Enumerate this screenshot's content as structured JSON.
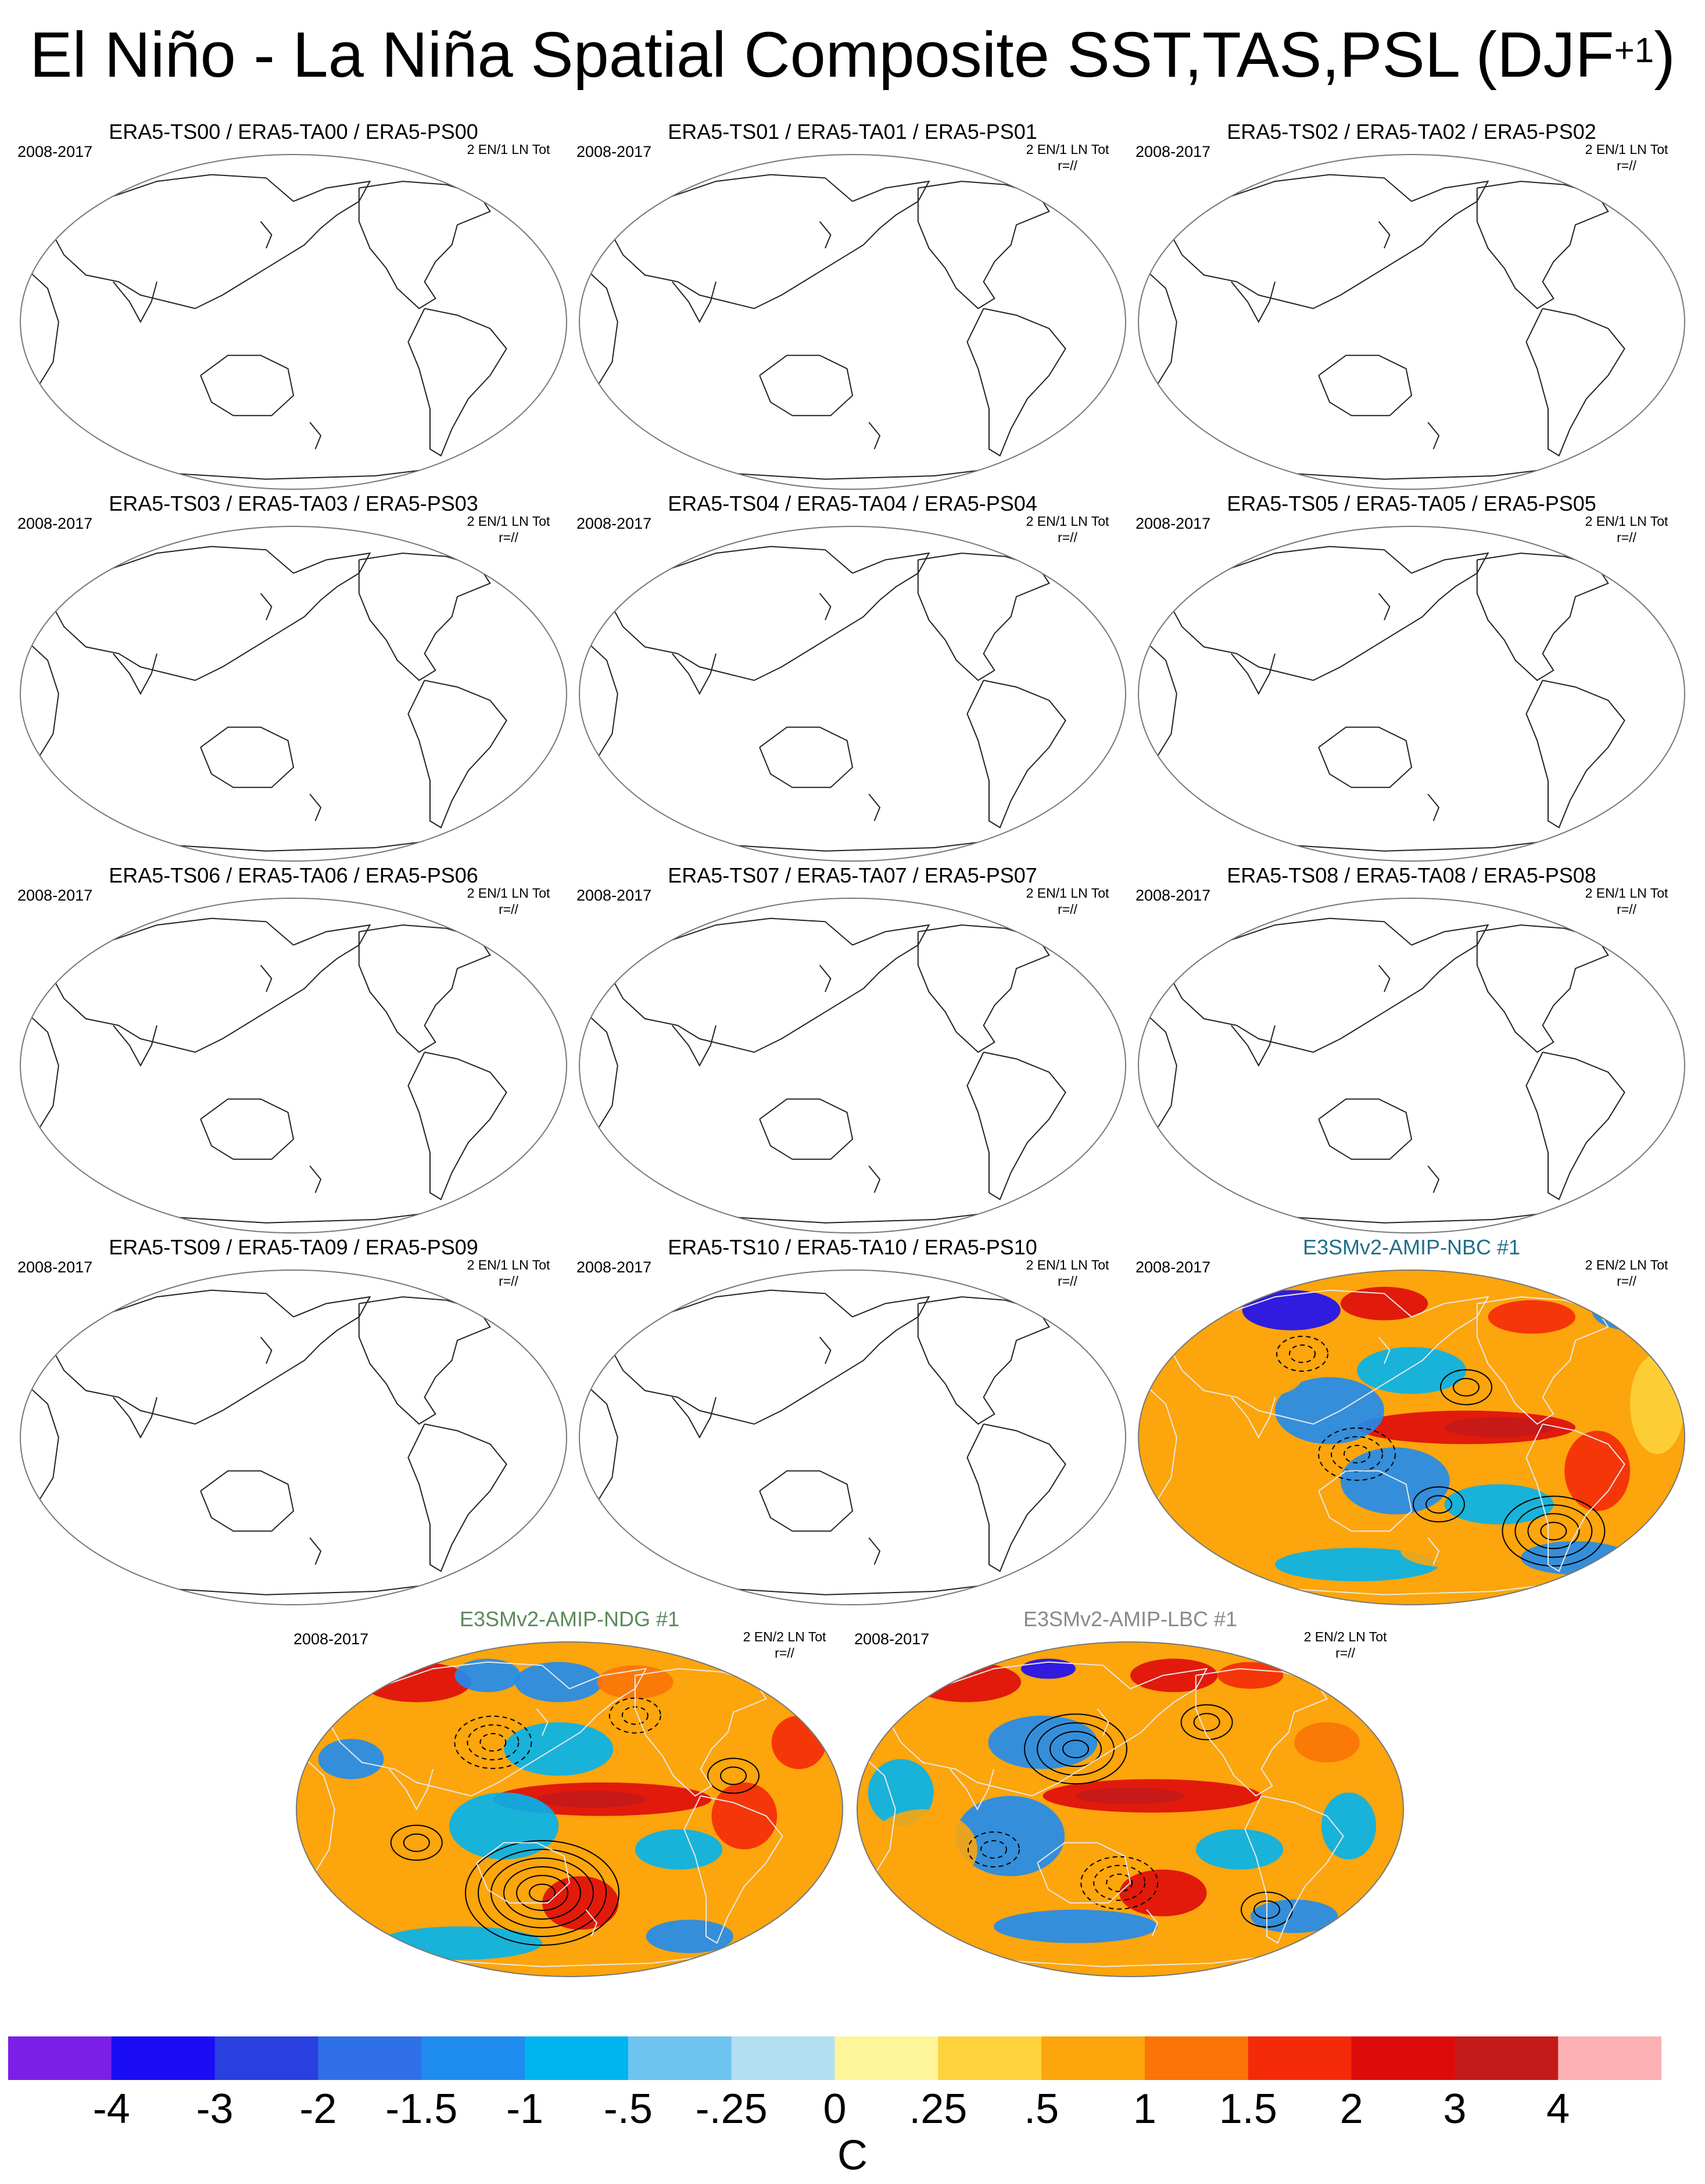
{
  "title_main": "El Niño - La Niña Spatial Composite SST,TAS,PSL (DJF",
  "title_sup": "+1",
  "title_close": ")",
  "panels": [
    {
      "title": "ERA5-TS00 / ERA5-TA00 / ERA5-PS00",
      "years": "2008-2017",
      "stats_line1": "2 EN/1 LN Tot",
      "stats_line2": "",
      "filled": false
    },
    {
      "title": "ERA5-TS01 / ERA5-TA01 / ERA5-PS01",
      "years": "2008-2017",
      "stats_line1": "2 EN/1 LN Tot",
      "stats_line2": "r=//",
      "filled": false
    },
    {
      "title": "ERA5-TS02 / ERA5-TA02 / ERA5-PS02",
      "years": "2008-2017",
      "stats_line1": "2 EN/1 LN Tot",
      "stats_line2": "r=//",
      "filled": false
    },
    {
      "title": "ERA5-TS03 / ERA5-TA03 / ERA5-PS03",
      "years": "2008-2017",
      "stats_line1": "2 EN/1 LN Tot",
      "stats_line2": "r=//",
      "filled": false
    },
    {
      "title": "ERA5-TS04 / ERA5-TA04 / ERA5-PS04",
      "years": "2008-2017",
      "stats_line1": "2 EN/1 LN Tot",
      "stats_line2": "r=//",
      "filled": false
    },
    {
      "title": "ERA5-TS05 / ERA5-TA05 / ERA5-PS05",
      "years": "2008-2017",
      "stats_line1": "2 EN/1 LN Tot",
      "stats_line2": "r=//",
      "filled": false
    },
    {
      "title": "ERA5-TS06 / ERA5-TA06 / ERA5-PS06",
      "years": "2008-2017",
      "stats_line1": "2 EN/1 LN Tot",
      "stats_line2": "r=//",
      "filled": false
    },
    {
      "title": "ERA5-TS07 / ERA5-TA07 / ERA5-PS07",
      "years": "2008-2017",
      "stats_line1": "2 EN/1 LN Tot",
      "stats_line2": "r=//",
      "filled": false
    },
    {
      "title": "ERA5-TS08 / ERA5-TA08 / ERA5-PS08",
      "years": "2008-2017",
      "stats_line1": "2 EN/1 LN Tot",
      "stats_line2": "r=//",
      "filled": false
    },
    {
      "title": "ERA5-TS09 / ERA5-TA09 / ERA5-PS09",
      "years": "2008-2017",
      "stats_line1": "2 EN/1 LN Tot",
      "stats_line2": "r=//",
      "filled": false
    },
    {
      "title": "ERA5-TS10 / ERA5-TA10 / ERA5-PS10",
      "years": "2008-2017",
      "stats_line1": "2 EN/1 LN Tot",
      "stats_line2": "r=//",
      "filled": false
    },
    {
      "title": "E3SMv2-AMIP-NBC #1",
      "years": "2008-2017",
      "stats_line1": "2 EN/2 LN Tot",
      "stats_line2": "r=//",
      "filled": true,
      "title_color": "#1f6f8b"
    },
    {
      "title": "E3SMv2-AMIP-NDG #1",
      "years": "2008-2017",
      "stats_line1": "2 EN/2 LN Tot",
      "stats_line2": "r=//",
      "filled": true,
      "title_color": "#5b8a5b"
    },
    {
      "title": "E3SMv2-AMIP-LBC #1",
      "years": "2008-2017",
      "stats_line1": "2 EN/2 LN Tot",
      "stats_line2": "r=//",
      "filled": true,
      "title_color": "#8a8a8a"
    }
  ],
  "chart_data": {
    "type": "heatmap",
    "colorbar": {
      "units": "C",
      "labels": [
        "-4",
        "-3",
        "-2",
        "-1.5",
        "-1",
        "-.5",
        "-.25",
        "0",
        ".25",
        ".5",
        "1",
        "1.5",
        "2",
        "3",
        "4"
      ],
      "colors": [
        "#7b1fe8",
        "#1a0cf5",
        "#2a3fe0",
        "#2f6fe8",
        "#1f8cf0",
        "#00b4f0",
        "#6ec4ee",
        "#b3dff2",
        "#fff59a",
        "#fdd23a",
        "#fca50c",
        "#fb7407",
        "#f42a08",
        "#de0b0b",
        "#c41a1a",
        "#fbb0b4"
      ]
    }
  }
}
